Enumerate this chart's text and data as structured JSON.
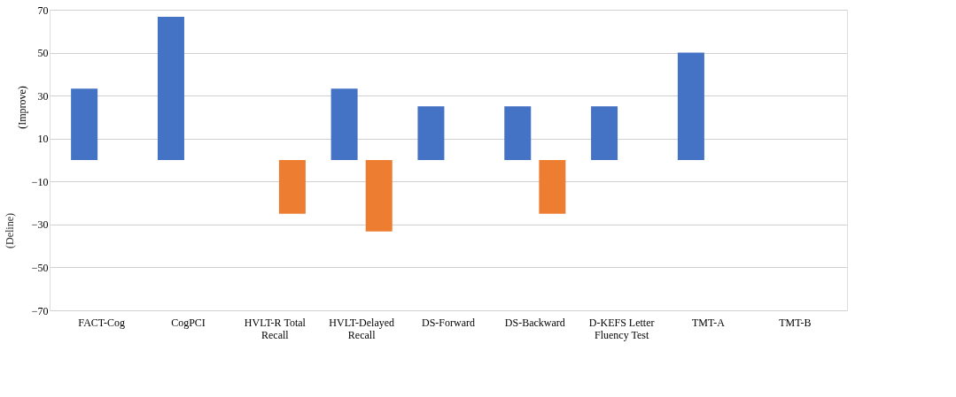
{
  "chart_data": {
    "type": "bar",
    "ylabel": "(Improve)",
    "annotations": [
      "(Deline)"
    ],
    "categories": [
      "FACT-Cog",
      "CogPCI",
      "HVLT-R Total\nRecall",
      "HVLT-Delayed\nRecall",
      "DS-Forward",
      "DS-Backward",
      "D-KEFS Letter\nFluency Test",
      "TMT-A",
      "TMT-B"
    ],
    "series": [
      {
        "color": "#4472c4",
        "values": [
          33.3,
          66.7,
          0,
          33.3,
          25,
          25,
          25,
          50,
          0
        ]
      },
      {
        "color": "#ed7d31",
        "values": [
          0,
          0,
          -25,
          -33.3,
          0,
          -25,
          0,
          0,
          0
        ]
      }
    ],
    "ylim": [
      -70,
      70
    ],
    "yticks": [
      -70,
      -50,
      -30,
      -10,
      10,
      30,
      50,
      70
    ],
    "grid": "y"
  }
}
